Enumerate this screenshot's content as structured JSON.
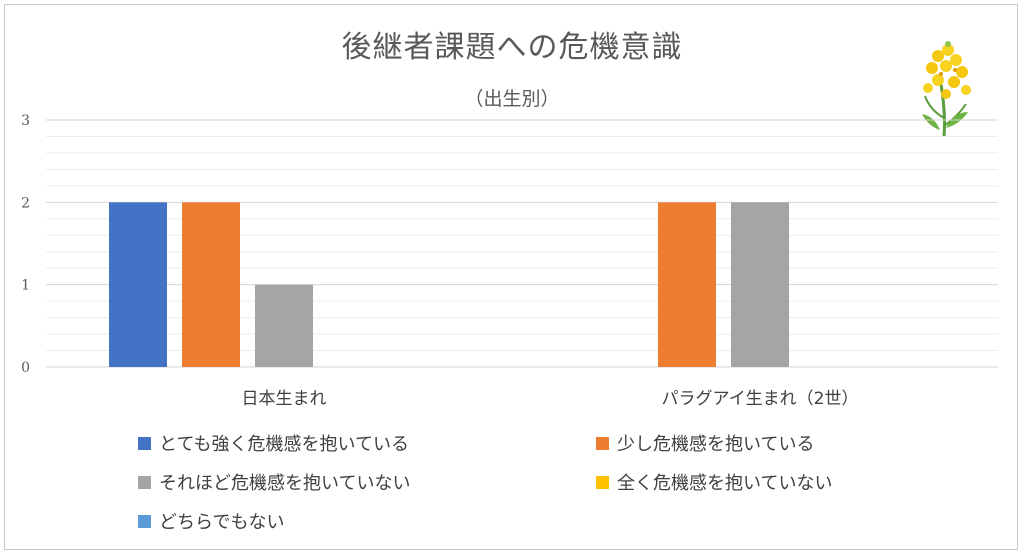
{
  "chart_data": {
    "type": "bar",
    "title": "後継者課題への危機意識",
    "subtitle": "（出生別）",
    "categories": [
      "日本生まれ",
      "パラグアイ生まれ（2世）"
    ],
    "series": [
      {
        "name": "とても強く危機感を抱いている",
        "color": "#4472c4",
        "values": [
          2,
          0
        ]
      },
      {
        "name": "少し危機感を抱いている",
        "color": "#ed7d31",
        "values": [
          2,
          2
        ]
      },
      {
        "name": "それほど危機感を抱いていない",
        "color": "#a5a5a5",
        "values": [
          1,
          2
        ]
      },
      {
        "name": "全く危機感を抱いていない",
        "color": "#ffc000",
        "values": [
          0,
          0
        ]
      },
      {
        "name": "どちらでもない",
        "color": "#5b9bd5",
        "values": [
          0,
          0
        ]
      }
    ],
    "ylim": [
      0,
      3
    ],
    "yticks": [
      "0",
      "1",
      "2",
      "3"
    ],
    "grid": true,
    "legend_position": "bottom"
  },
  "decoration": {
    "icon": "rapeseed-flower-icon"
  }
}
